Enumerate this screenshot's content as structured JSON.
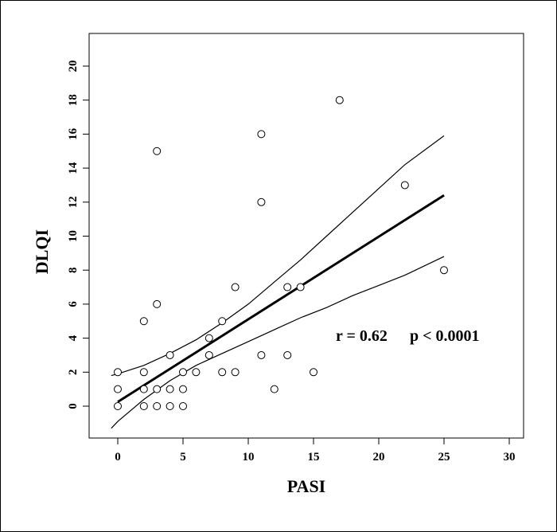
{
  "chart_data": {
    "type": "scatter",
    "xlabel": "PASI",
    "ylabel": "DLQI",
    "xlim": [
      -2,
      31
    ],
    "ylim": [
      -2,
      22
    ],
    "xticks": [
      0,
      5,
      10,
      15,
      20,
      25,
      30
    ],
    "yticks": [
      0,
      2,
      4,
      6,
      8,
      10,
      12,
      14,
      16,
      18,
      20
    ],
    "annotation": {
      "r_text": "r = 0.62",
      "p_text": "p < 0.0001"
    },
    "points": [
      {
        "x": 0,
        "y": 2
      },
      {
        "x": 0,
        "y": 1
      },
      {
        "x": 0,
        "y": 0
      },
      {
        "x": 2,
        "y": 5
      },
      {
        "x": 2,
        "y": 2
      },
      {
        "x": 2,
        "y": 1
      },
      {
        "x": 2,
        "y": 0
      },
      {
        "x": 3,
        "y": 15
      },
      {
        "x": 3,
        "y": 6
      },
      {
        "x": 3,
        "y": 1
      },
      {
        "x": 3,
        "y": 0
      },
      {
        "x": 4,
        "y": 3
      },
      {
        "x": 4,
        "y": 1
      },
      {
        "x": 4,
        "y": 0
      },
      {
        "x": 5,
        "y": 2
      },
      {
        "x": 5,
        "y": 1
      },
      {
        "x": 5,
        "y": 0
      },
      {
        "x": 6,
        "y": 2
      },
      {
        "x": 7,
        "y": 4
      },
      {
        "x": 7,
        "y": 3
      },
      {
        "x": 8,
        "y": 5
      },
      {
        "x": 8,
        "y": 2
      },
      {
        "x": 9,
        "y": 7
      },
      {
        "x": 9,
        "y": 2
      },
      {
        "x": 11,
        "y": 16
      },
      {
        "x": 11,
        "y": 12
      },
      {
        "x": 11,
        "y": 3
      },
      {
        "x": 12,
        "y": 1
      },
      {
        "x": 13,
        "y": 7
      },
      {
        "x": 13,
        "y": 3
      },
      {
        "x": 14,
        "y": 7
      },
      {
        "x": 15,
        "y": 2
      },
      {
        "x": 17,
        "y": 18
      },
      {
        "x": 22,
        "y": 13
      },
      {
        "x": 25,
        "y": 8
      }
    ],
    "regression_line": {
      "x": [
        0,
        25
      ],
      "y": [
        0.25,
        12.4
      ]
    },
    "ci_upper": {
      "x": [
        -0.5,
        0,
        2,
        4,
        6,
        8,
        10,
        12,
        14,
        16,
        18,
        20,
        22,
        25
      ],
      "y": [
        1.8,
        1.9,
        2.4,
        3.1,
        3.9,
        4.9,
        6.0,
        7.3,
        8.6,
        10.0,
        11.4,
        12.8,
        14.2,
        15.9
      ]
    },
    "ci_lower": {
      "x": [
        -0.5,
        0,
        2,
        4,
        6,
        8,
        10,
        12,
        14,
        16,
        18,
        20,
        22,
        25
      ],
      "y": [
        -1.3,
        -0.9,
        0.4,
        1.5,
        2.4,
        3.1,
        3.8,
        4.5,
        5.2,
        5.8,
        6.5,
        7.1,
        7.7,
        8.8
      ]
    }
  }
}
